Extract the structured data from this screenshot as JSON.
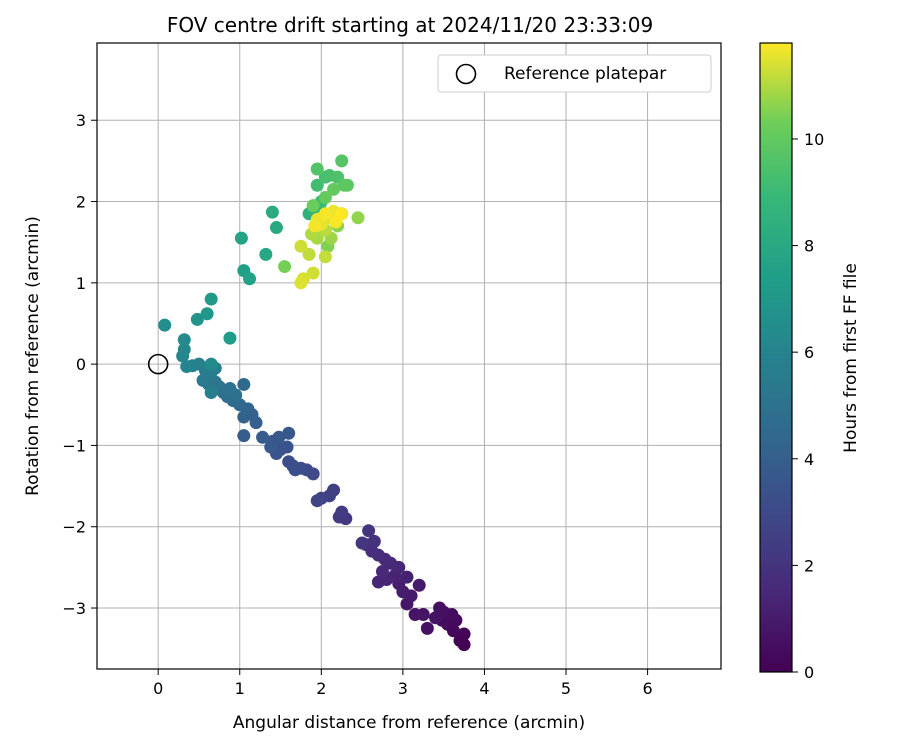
{
  "chart_data": {
    "type": "scatter",
    "title": "FOV centre drift starting at 2024/11/20 23:33:09",
    "xlabel": "Angular distance from reference (arcmin)",
    "ylabel": "Rotation from reference (arcmin)",
    "xlim": [
      -0.75,
      6.9
    ],
    "ylim": [
      -3.75,
      3.95
    ],
    "xticks": [
      0,
      1,
      2,
      3,
      4,
      5,
      6
    ],
    "yticks": [
      -3,
      -2,
      -1,
      0,
      1,
      2,
      3
    ],
    "grid": true,
    "legend": {
      "position": "top-right",
      "entries": [
        "Reference platepar"
      ]
    },
    "reference_point": {
      "x": 0,
      "y": 0,
      "marker": "open-circle",
      "color": "#000000"
    },
    "colorbar": {
      "label": "Hours from first FF file",
      "range": [
        0,
        11.8
      ],
      "ticks": [
        0,
        2,
        4,
        6,
        8,
        10
      ],
      "colormap": "viridis"
    },
    "points": [
      {
        "x": 3.75,
        "y": -3.45,
        "h": 0.0
      },
      {
        "x": 3.7,
        "y": -3.4,
        "h": 0.1
      },
      {
        "x": 3.75,
        "y": -3.32,
        "h": 0.15
      },
      {
        "x": 3.62,
        "y": -3.28,
        "h": 0.2
      },
      {
        "x": 3.55,
        "y": -3.2,
        "h": 0.3
      },
      {
        "x": 3.65,
        "y": -3.15,
        "h": 0.35
      },
      {
        "x": 3.48,
        "y": -3.15,
        "h": 0.4
      },
      {
        "x": 3.6,
        "y": -3.08,
        "h": 0.45
      },
      {
        "x": 3.5,
        "y": -3.05,
        "h": 0.5
      },
      {
        "x": 3.45,
        "y": -3.0,
        "h": 0.55
      },
      {
        "x": 3.3,
        "y": -3.25,
        "h": 0.6
      },
      {
        "x": 3.4,
        "y": -3.12,
        "h": 0.65
      },
      {
        "x": 3.25,
        "y": -3.08,
        "h": 0.7
      },
      {
        "x": 3.15,
        "y": -3.08,
        "h": 0.75
      },
      {
        "x": 3.05,
        "y": -2.95,
        "h": 0.85
      },
      {
        "x": 3.1,
        "y": -2.85,
        "h": 0.9
      },
      {
        "x": 3.2,
        "y": -2.72,
        "h": 1.0
      },
      {
        "x": 3.0,
        "y": -2.8,
        "h": 1.05
      },
      {
        "x": 2.95,
        "y": -2.7,
        "h": 1.1
      },
      {
        "x": 3.05,
        "y": -2.62,
        "h": 1.2
      },
      {
        "x": 2.9,
        "y": -2.6,
        "h": 1.3
      },
      {
        "x": 2.8,
        "y": -2.65,
        "h": 1.35
      },
      {
        "x": 2.7,
        "y": -2.68,
        "h": 1.4
      },
      {
        "x": 2.95,
        "y": -2.5,
        "h": 1.45
      },
      {
        "x": 2.85,
        "y": -2.45,
        "h": 1.5
      },
      {
        "x": 2.75,
        "y": -2.55,
        "h": 1.55
      },
      {
        "x": 2.78,
        "y": -2.4,
        "h": 1.6
      },
      {
        "x": 2.7,
        "y": -2.35,
        "h": 1.7
      },
      {
        "x": 2.62,
        "y": -2.3,
        "h": 1.8
      },
      {
        "x": 2.55,
        "y": -2.22,
        "h": 1.85
      },
      {
        "x": 2.65,
        "y": -2.18,
        "h": 1.9
      },
      {
        "x": 2.58,
        "y": -2.05,
        "h": 2.0
      },
      {
        "x": 2.5,
        "y": -2.2,
        "h": 2.1
      },
      {
        "x": 2.3,
        "y": -1.9,
        "h": 2.2
      },
      {
        "x": 2.22,
        "y": -1.88,
        "h": 2.3
      },
      {
        "x": 2.25,
        "y": -1.82,
        "h": 2.35
      },
      {
        "x": 2.15,
        "y": -1.55,
        "h": 2.5
      },
      {
        "x": 2.1,
        "y": -1.62,
        "h": 2.6
      },
      {
        "x": 2.0,
        "y": -1.65,
        "h": 2.7
      },
      {
        "x": 1.95,
        "y": -1.68,
        "h": 2.8
      },
      {
        "x": 1.9,
        "y": -1.35,
        "h": 3.0
      },
      {
        "x": 1.82,
        "y": -1.3,
        "h": 3.05
      },
      {
        "x": 1.75,
        "y": -1.28,
        "h": 3.1
      },
      {
        "x": 1.65,
        "y": -1.25,
        "h": 3.15
      },
      {
        "x": 1.6,
        "y": -1.2,
        "h": 3.2
      },
      {
        "x": 1.68,
        "y": -1.3,
        "h": 3.25
      },
      {
        "x": 1.58,
        "y": -1.02,
        "h": 3.4
      },
      {
        "x": 1.5,
        "y": -1.05,
        "h": 3.45
      },
      {
        "x": 1.45,
        "y": -1.1,
        "h": 3.5
      },
      {
        "x": 1.4,
        "y": -0.95,
        "h": 3.55
      },
      {
        "x": 1.48,
        "y": -0.9,
        "h": 3.6
      },
      {
        "x": 1.6,
        "y": -0.85,
        "h": 3.65
      },
      {
        "x": 1.38,
        "y": -1.02,
        "h": 3.7
      },
      {
        "x": 1.28,
        "y": -0.9,
        "h": 3.8
      },
      {
        "x": 1.05,
        "y": -0.88,
        "h": 3.9
      },
      {
        "x": 1.2,
        "y": -0.72,
        "h": 4.0
      },
      {
        "x": 1.15,
        "y": -0.62,
        "h": 4.1
      },
      {
        "x": 1.05,
        "y": -0.65,
        "h": 4.2
      },
      {
        "x": 1.1,
        "y": -0.55,
        "h": 4.3
      },
      {
        "x": 1.0,
        "y": -0.5,
        "h": 4.4
      },
      {
        "x": 1.05,
        "y": -0.25,
        "h": 4.5
      },
      {
        "x": 0.92,
        "y": -0.45,
        "h": 4.6
      },
      {
        "x": 0.85,
        "y": -0.4,
        "h": 4.7
      },
      {
        "x": 0.8,
        "y": -0.35,
        "h": 4.8
      },
      {
        "x": 0.95,
        "y": -0.38,
        "h": 4.9
      },
      {
        "x": 0.88,
        "y": -0.3,
        "h": 5.0
      },
      {
        "x": 0.75,
        "y": -0.28,
        "h": 5.1
      },
      {
        "x": 0.7,
        "y": -0.22,
        "h": 5.2
      },
      {
        "x": 0.62,
        "y": -0.25,
        "h": 5.3
      },
      {
        "x": 0.55,
        "y": -0.2,
        "h": 5.4
      },
      {
        "x": 0.65,
        "y": -0.1,
        "h": 5.5
      },
      {
        "x": 0.58,
        "y": -0.08,
        "h": 5.6
      },
      {
        "x": 0.7,
        "y": -0.05,
        "h": 5.7
      },
      {
        "x": 0.65,
        "y": -0.35,
        "h": 5.75
      },
      {
        "x": 0.5,
        "y": 0.0,
        "h": 5.8
      },
      {
        "x": 0.42,
        "y": -0.02,
        "h": 5.9
      },
      {
        "x": 0.35,
        "y": -0.03,
        "h": 6.0
      },
      {
        "x": 0.3,
        "y": 0.1,
        "h": 6.1
      },
      {
        "x": 0.32,
        "y": 0.18,
        "h": 6.2
      },
      {
        "x": 0.32,
        "y": 0.3,
        "h": 6.3
      },
      {
        "x": 0.65,
        "y": 0.0,
        "h": 6.4
      },
      {
        "x": 0.08,
        "y": 0.48,
        "h": 6.6
      },
      {
        "x": 0.48,
        "y": 0.55,
        "h": 6.8
      },
      {
        "x": 0.6,
        "y": 0.62,
        "h": 7.0
      },
      {
        "x": 0.65,
        "y": 0.8,
        "h": 7.2
      },
      {
        "x": 0.88,
        "y": 0.32,
        "h": 7.3
      },
      {
        "x": 1.05,
        "y": 1.15,
        "h": 7.5
      },
      {
        "x": 1.12,
        "y": 1.05,
        "h": 7.6
      },
      {
        "x": 1.02,
        "y": 1.55,
        "h": 7.7
      },
      {
        "x": 1.32,
        "y": 1.35,
        "h": 7.9
      },
      {
        "x": 1.45,
        "y": 1.68,
        "h": 8.0
      },
      {
        "x": 1.4,
        "y": 1.87,
        "h": 8.1
      },
      {
        "x": 1.85,
        "y": 1.85,
        "h": 8.4
      },
      {
        "x": 1.98,
        "y": 1.95,
        "h": 8.6
      },
      {
        "x": 1.9,
        "y": 1.9,
        "h": 8.7
      },
      {
        "x": 2.25,
        "y": 1.85,
        "h": 8.8
      },
      {
        "x": 2.0,
        "y": 2.0,
        "h": 9.0
      },
      {
        "x": 1.95,
        "y": 2.2,
        "h": 9.2
      },
      {
        "x": 2.05,
        "y": 2.3,
        "h": 9.3
      },
      {
        "x": 2.1,
        "y": 2.32,
        "h": 9.4
      },
      {
        "x": 2.2,
        "y": 2.3,
        "h": 9.5
      },
      {
        "x": 1.95,
        "y": 2.4,
        "h": 9.6
      },
      {
        "x": 2.25,
        "y": 2.5,
        "h": 9.7
      },
      {
        "x": 2.28,
        "y": 2.2,
        "h": 9.8
      },
      {
        "x": 2.32,
        "y": 2.2,
        "h": 9.9
      },
      {
        "x": 2.15,
        "y": 2.15,
        "h": 10.0
      },
      {
        "x": 2.05,
        "y": 2.05,
        "h": 10.1
      },
      {
        "x": 1.9,
        "y": 1.95,
        "h": 10.2
      },
      {
        "x": 2.0,
        "y": 1.8,
        "h": 10.3
      },
      {
        "x": 1.55,
        "y": 1.2,
        "h": 10.4
      },
      {
        "x": 2.08,
        "y": 1.45,
        "h": 10.5
      },
      {
        "x": 2.2,
        "y": 1.7,
        "h": 10.6
      },
      {
        "x": 2.45,
        "y": 1.8,
        "h": 10.7
      },
      {
        "x": 2.12,
        "y": 1.55,
        "h": 10.8
      },
      {
        "x": 1.95,
        "y": 1.55,
        "h": 10.9
      },
      {
        "x": 1.88,
        "y": 1.6,
        "h": 11.0
      },
      {
        "x": 2.05,
        "y": 1.65,
        "h": 11.1
      },
      {
        "x": 1.85,
        "y": 1.35,
        "h": 11.15
      },
      {
        "x": 2.05,
        "y": 1.32,
        "h": 11.2
      },
      {
        "x": 1.75,
        "y": 1.45,
        "h": 11.3
      },
      {
        "x": 1.9,
        "y": 1.12,
        "h": 11.35
      },
      {
        "x": 1.78,
        "y": 1.05,
        "h": 11.4
      },
      {
        "x": 1.75,
        "y": 1.0,
        "h": 11.45
      },
      {
        "x": 2.1,
        "y": 1.8,
        "h": 11.5
      },
      {
        "x": 2.0,
        "y": 1.72,
        "h": 11.55
      },
      {
        "x": 1.95,
        "y": 1.78,
        "h": 11.6
      },
      {
        "x": 2.15,
        "y": 1.88,
        "h": 11.65
      },
      {
        "x": 1.92,
        "y": 1.7,
        "h": 11.7
      },
      {
        "x": 2.05,
        "y": 1.85,
        "h": 11.72
      },
      {
        "x": 2.18,
        "y": 1.75,
        "h": 11.75
      },
      {
        "x": 2.25,
        "y": 1.85,
        "h": 11.8
      }
    ]
  }
}
